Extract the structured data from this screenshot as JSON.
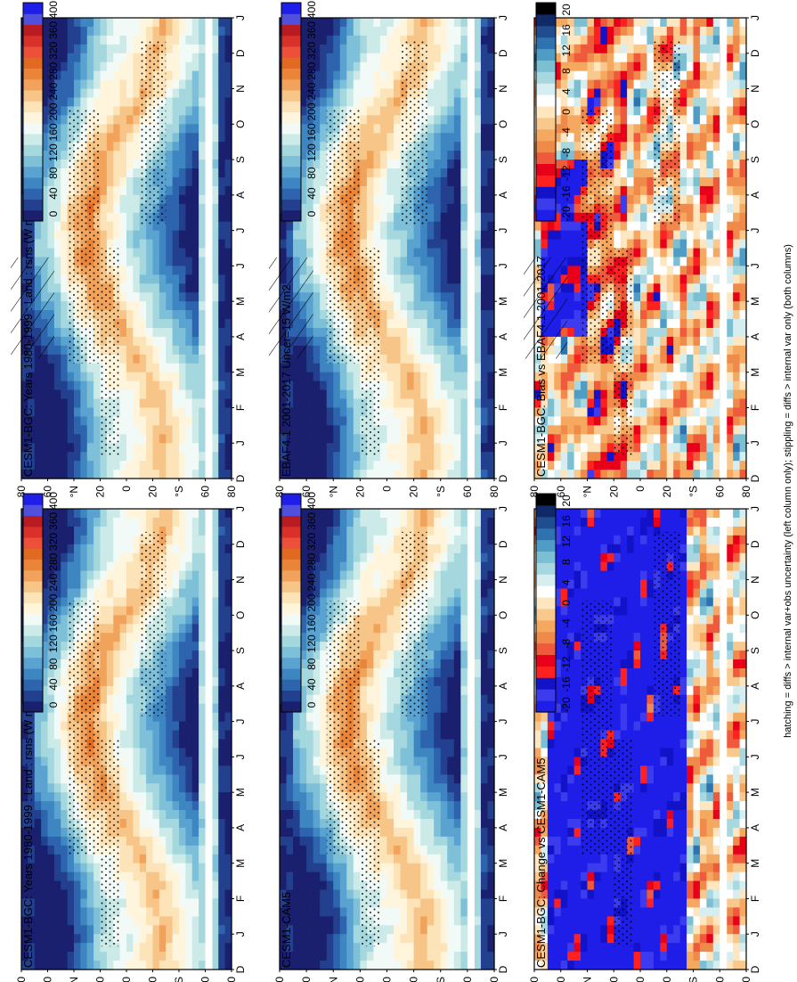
{
  "caption": "hatching = diffs > internal var+obs uncertainty (left column only); stippling = diffs > internal var only (both columns)",
  "palettes": {
    "absolute": [
      "#1a1f6e",
      "#23408f",
      "#2d64ad",
      "#3d86c2",
      "#5aa3d1",
      "#7fc0d9",
      "#a5d8de",
      "#ccebe8",
      "#f2faf7",
      "#fff5dc",
      "#fde3b8",
      "#f8c589",
      "#f1a35c",
      "#e98438",
      "#e06a22",
      "#ee4f3a",
      "#d9302a",
      "#b81c22",
      "#5050dd",
      "#1e1ee8"
    ],
    "difference": [
      "#1e1ee8",
      "#3c3cee",
      "#1212c8",
      "#ff2020",
      "#e8001a",
      "#f05a3c",
      "#f08a4a",
      "#f4a860",
      "#f8c88c",
      "#fde6c0",
      "#ffffff",
      "#d6eef0",
      "#a8d8df",
      "#7cbfd3",
      "#4f9cc5",
      "#2e72b0",
      "#1f4d8f",
      "#0f2a66",
      "#000000"
    ]
  },
  "panels": [
    {
      "id": "model-historical",
      "title": "CESM1-BGC: Years 1980-1999 : Land : rsns (W m-2)",
      "kind": "absolute",
      "colorbar_ticks": [
        "400",
        "360",
        "320",
        "280",
        "240",
        "200",
        "160",
        "120",
        "80",
        "40",
        "0"
      ]
    },
    {
      "id": "ceres-obs",
      "title": "EBAF4.1 2001-2017 Uncer=15 W/m2",
      "kind": "absolute",
      "colorbar_ticks": [
        "400",
        "360",
        "320",
        "280",
        "240",
        "200",
        "160",
        "120",
        "80",
        "40",
        "0"
      ]
    },
    {
      "id": "bias",
      "title": "CESM1-BGC: Bias vs EBAF4.1 2001-2017",
      "kind": "difference",
      "colorbar_ticks": [
        "20",
        "16",
        "12",
        "8",
        "4",
        "0",
        "-4",
        "-8",
        "-12",
        "-16",
        "-20"
      ]
    },
    {
      "id": "model-historical-right",
      "title": "CESM1-BGC: Years 1980-1999 : Land : rsns (W m-2)",
      "kind": "absolute",
      "colorbar_ticks": [
        "400",
        "360",
        "320",
        "280",
        "240",
        "200",
        "160",
        "120",
        "80",
        "40",
        "0"
      ]
    },
    {
      "id": "other-model",
      "title": "CESM1-CAM5",
      "kind": "absolute",
      "colorbar_ticks": [
        "400",
        "360",
        "320",
        "280",
        "240",
        "200",
        "160",
        "120",
        "80",
        "40",
        "0"
      ]
    },
    {
      "id": "change",
      "title": "CESM1-BGC: Change vs CESM1-CAM5",
      "kind": "difference",
      "colorbar_ticks": [
        "20",
        "16",
        "12",
        "8",
        "4",
        "0",
        "-4",
        "-8",
        "-12",
        "-16",
        "-20"
      ]
    }
  ],
  "chart_data": [
    {
      "type": "heatmap",
      "title": "CESM1-BGC: Years 1980-1999 : Land : rsns (W m-2)",
      "x": [
        "D",
        "J",
        "F",
        "M",
        "A",
        "M",
        "J",
        "J",
        "A",
        "S",
        "O",
        "N",
        "D",
        "J"
      ],
      "y_ticks": [
        "80",
        "60",
        "°N",
        "20",
        "0",
        "20",
        "°S",
        "60",
        "80"
      ],
      "units": "W m-2",
      "color_range": [
        0,
        400
      ],
      "colorbar_ticks": [
        400,
        360,
        320,
        280,
        240,
        200,
        160,
        120,
        80,
        40,
        0
      ]
    },
    {
      "type": "heatmap",
      "title": "EBAF4.1 2001-2017 Uncer=15 W/m2",
      "x": [
        "D",
        "J",
        "F",
        "M",
        "A",
        "M",
        "J",
        "J",
        "A",
        "S",
        "O",
        "N",
        "D",
        "J"
      ],
      "y_ticks": [
        "80",
        "60",
        "°N",
        "20",
        "0",
        "20",
        "°S",
        "60",
        "80"
      ],
      "units": "W m-2",
      "color_range": [
        0,
        400
      ],
      "colorbar_ticks": [
        400,
        360,
        320,
        280,
        240,
        200,
        160,
        120,
        80,
        40,
        0
      ]
    },
    {
      "type": "heatmap",
      "title": "CESM1-BGC: Bias vs EBAF4.1 2001-2017",
      "x": [
        "D",
        "J",
        "F",
        "M",
        "A",
        "M",
        "J",
        "J",
        "A",
        "S",
        "O",
        "N",
        "D",
        "J"
      ],
      "y_ticks": [
        "80",
        "60",
        "°N",
        "20",
        "0",
        "20",
        "°S",
        "60",
        "80"
      ],
      "units": "W m-2",
      "color_range": [
        -20,
        20
      ],
      "colorbar_ticks": [
        20,
        16,
        12,
        8,
        4,
        0,
        -4,
        -8,
        -12,
        -16,
        -20
      ]
    },
    {
      "type": "heatmap",
      "title": "CESM1-BGC: Years 1980-1999 : Land : rsns (W m-2)",
      "x": [
        "D",
        "J",
        "F",
        "M",
        "A",
        "M",
        "J",
        "J",
        "A",
        "S",
        "O",
        "N",
        "D",
        "J"
      ],
      "y_ticks": [
        "80",
        "60",
        "°N",
        "20",
        "0",
        "20",
        "°S",
        "60",
        "80"
      ],
      "units": "W m-2",
      "color_range": [
        0,
        400
      ],
      "colorbar_ticks": [
        400,
        360,
        320,
        280,
        240,
        200,
        160,
        120,
        80,
        40,
        0
      ]
    },
    {
      "type": "heatmap",
      "title": "CESM1-CAM5",
      "x": [
        "D",
        "J",
        "F",
        "M",
        "A",
        "M",
        "J",
        "J",
        "A",
        "S",
        "O",
        "N",
        "D",
        "J"
      ],
      "y_ticks": [
        "80",
        "60",
        "°N",
        "20",
        "0",
        "20",
        "°S",
        "60",
        "80"
      ],
      "units": "W m-2",
      "color_range": [
        0,
        400
      ],
      "colorbar_ticks": [
        400,
        360,
        320,
        280,
        240,
        200,
        160,
        120,
        80,
        40,
        0
      ]
    },
    {
      "type": "heatmap",
      "title": "CESM1-BGC: Change vs CESM1-CAM5",
      "x": [
        "D",
        "J",
        "F",
        "M",
        "A",
        "M",
        "J",
        "J",
        "A",
        "S",
        "O",
        "N",
        "D",
        "J"
      ],
      "y_ticks": [
        "80",
        "60",
        "°N",
        "20",
        "0",
        "20",
        "°S",
        "60",
        "80"
      ],
      "units": "W m-2",
      "color_range": [
        -20,
        20
      ],
      "colorbar_ticks": [
        20,
        16,
        12,
        8,
        4,
        0,
        -4,
        -8,
        -12,
        -16,
        -20
      ]
    }
  ]
}
